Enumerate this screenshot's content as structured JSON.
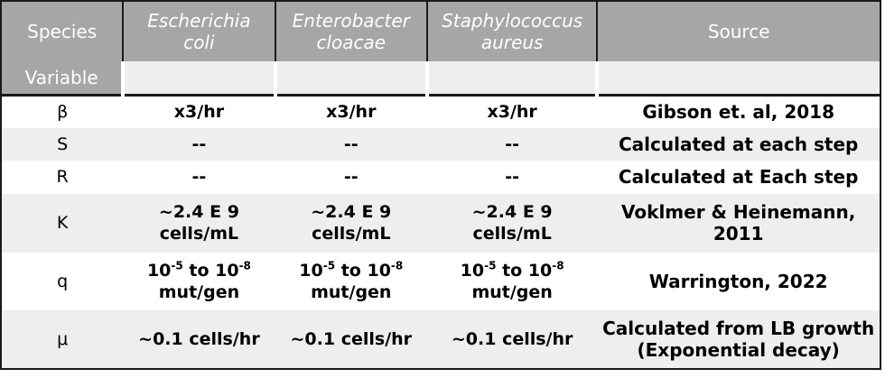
{
  "header": {
    "species_label": "Species",
    "variable_label": "Variable",
    "source_label": "Source",
    "organisms": [
      {
        "line1": "Escherichia",
        "line2": "coli"
      },
      {
        "line1": "Enterobacter",
        "line2": "cloacae"
      },
      {
        "line1": "Staphylococcus",
        "line2": "aureus"
      }
    ]
  },
  "rows": {
    "beta": {
      "variable": "β",
      "values": [
        "x3/hr",
        "x3/hr",
        "x3/hr"
      ],
      "source": "Gibson et. al, 2018"
    },
    "s": {
      "variable": "S",
      "values": [
        "--",
        "--",
        "--"
      ],
      "source": "Calculated at each step"
    },
    "r": {
      "variable": "R",
      "values": [
        "--",
        "--",
        "--"
      ],
      "source": "Calculated at Each step"
    },
    "k": {
      "variable": "K",
      "value_line1": "~2.4 E 9",
      "value_line2": "cells/mL",
      "source": "Voklmer & Heinemann, 2011"
    },
    "q": {
      "variable": "q",
      "base1": "10",
      "exp1": "-5",
      "to": " to ",
      "base2": "10",
      "exp2": "-8",
      "value_line2": "mut/gen",
      "source": "Warrington, 2022"
    },
    "mu": {
      "variable": "μ",
      "values": [
        "~0.1 cells/hr",
        "~0.1 cells/hr",
        "~0.1 cells/hr"
      ],
      "source_line1": "Calculated from LB growth",
      "source_line2": "(Exponential decay)"
    }
  },
  "colors": {
    "header_bg": "#a6a6a6",
    "header_text": "#ffffff",
    "shade_bg": "#eeeeee",
    "border": "#1a1a1a"
  }
}
